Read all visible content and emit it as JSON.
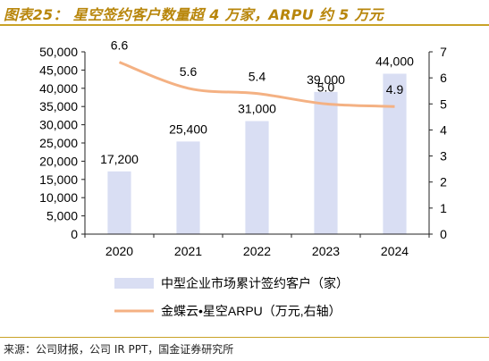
{
  "page": {
    "title": "图表25：  星空签约客户数量超 4 万家，ARPU 约 5 万元",
    "source": "来源：公司财报，公司 IR PPT，国金证券研究所"
  },
  "colors": {
    "bar": "#d9def3",
    "line": "#f4b183",
    "axis": "#222222",
    "title": "#b8860b",
    "rule": "#c9a227"
  },
  "chart_data": {
    "type": "bar",
    "categories": [
      "2020",
      "2021",
      "2022",
      "2023",
      "2024"
    ],
    "series": [
      {
        "name": "中型企业市场累计签约客户（家）",
        "type": "bar",
        "axis": "left",
        "values": [
          17200,
          25400,
          31000,
          39000,
          44000
        ],
        "data_labels": [
          "17,200",
          "25,400",
          "31,000",
          "39,000",
          "44,000"
        ]
      },
      {
        "name": "金蝶云•星空ARPU（万元,右轴）",
        "type": "line",
        "axis": "right",
        "values": [
          6.6,
          5.6,
          5.4,
          5.0,
          4.9
        ],
        "data_labels": [
          "6.6",
          "5.6",
          "5.4",
          "5.0",
          "4.9"
        ]
      }
    ],
    "y_left": {
      "ylim": [
        0,
        50000
      ],
      "ticks": [
        "0",
        "5,000",
        "10,000",
        "15,000",
        "20,000",
        "25,000",
        "30,000",
        "35,000",
        "40,000",
        "45,000",
        "50,000"
      ]
    },
    "y_right": {
      "ylim": [
        0,
        7
      ],
      "ticks": [
        "0",
        "1",
        "2",
        "3",
        "4",
        "5",
        "6",
        "7"
      ]
    },
    "grid": false,
    "legend_position": "bottom"
  }
}
